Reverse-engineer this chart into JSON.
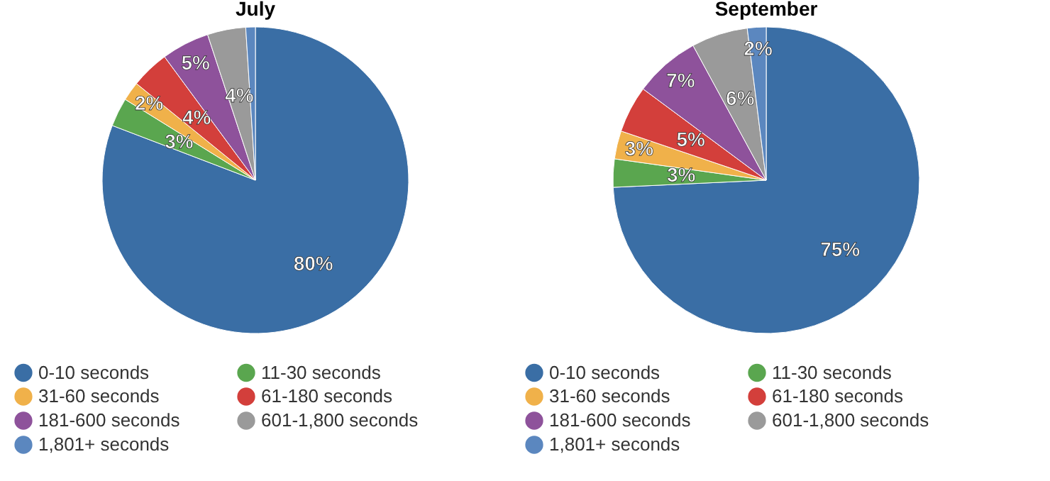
{
  "chart_data": [
    {
      "type": "pie",
      "title": "July",
      "categories": [
        "0-10 seconds",
        "11-30 seconds",
        "31-60 seconds",
        "61-180 seconds",
        "181-600 seconds",
        "601-1,800 seconds",
        "1,801+ seconds"
      ],
      "values": [
        80,
        3,
        2,
        4,
        5,
        4,
        1
      ],
      "value_labels": [
        "80%",
        "3%",
        "2%",
        "4%",
        "5%",
        "4%",
        null
      ],
      "colors": [
        "#3a6ea5",
        "#5aa64f",
        "#f0b14a",
        "#d33f3b",
        "#8e529b",
        "#9a9a9a",
        "#5b87bf"
      ],
      "legend": "bottom"
    },
    {
      "type": "pie",
      "title": "September",
      "categories": [
        "0-10 seconds",
        "11-30 seconds",
        "31-60 seconds",
        "61-180 seconds",
        "181-600 seconds",
        "601-1,800 seconds",
        "1,801+ seconds"
      ],
      "values": [
        75,
        3,
        3,
        5,
        7,
        6,
        2
      ],
      "value_labels": [
        "75%",
        "3%",
        "3%",
        "5%",
        "7%",
        "6%",
        "2%"
      ],
      "colors": [
        "#3a6ea5",
        "#5aa64f",
        "#f0b14a",
        "#d33f3b",
        "#8e529b",
        "#9a9a9a",
        "#5b87bf"
      ],
      "legend": "bottom"
    }
  ]
}
